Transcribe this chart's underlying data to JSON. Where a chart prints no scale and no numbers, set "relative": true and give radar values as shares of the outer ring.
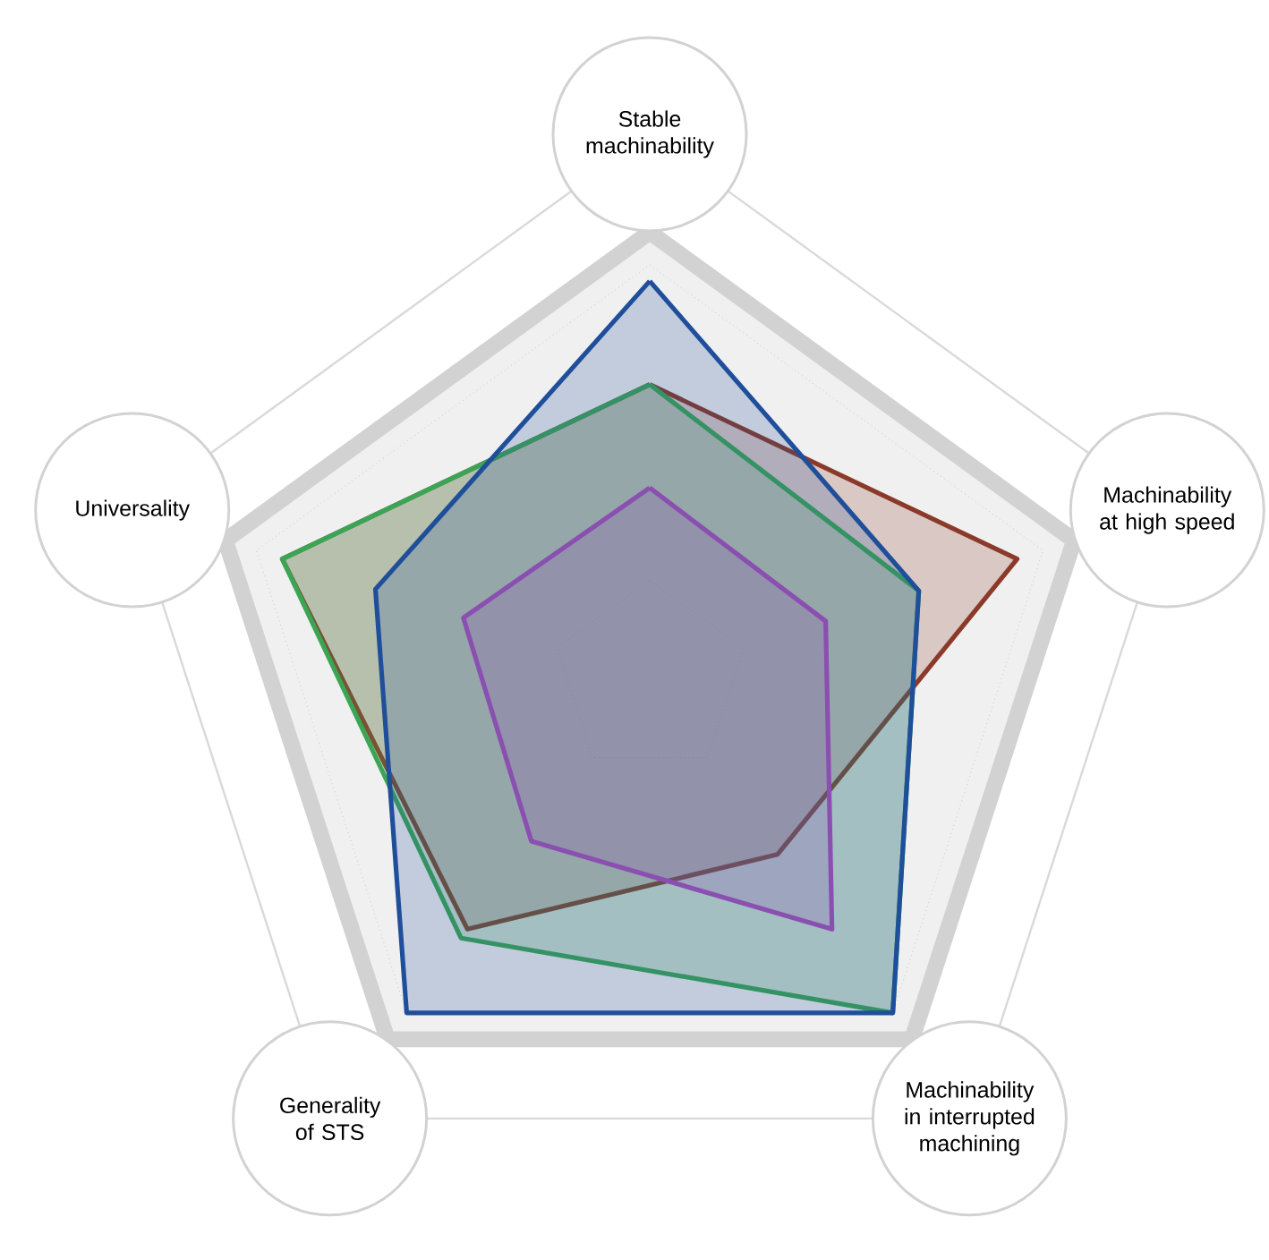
{
  "chart_data": {
    "type": "radar",
    "relative": true,
    "categories": [
      "Stable machinability",
      "Machinability at high speed",
      "Machinability in interrupted machining",
      "Generality of STS",
      "Universality"
    ],
    "series": [
      {
        "color": "#8b3a2a",
        "values": [
          0.54,
          0.71,
          0.4,
          0.57,
          0.71
        ]
      },
      {
        "color": "#3aa655",
        "values": [
          0.54,
          0.52,
          0.76,
          0.59,
          0.71
        ]
      },
      {
        "color": "#1f4e9a",
        "values": [
          0.73,
          0.52,
          0.76,
          0.76,
          0.53
        ]
      },
      {
        "color": "#8a4fb0",
        "values": [
          0.35,
          0.34,
          0.57,
          0.37,
          0.36
        ]
      }
    ]
  }
}
